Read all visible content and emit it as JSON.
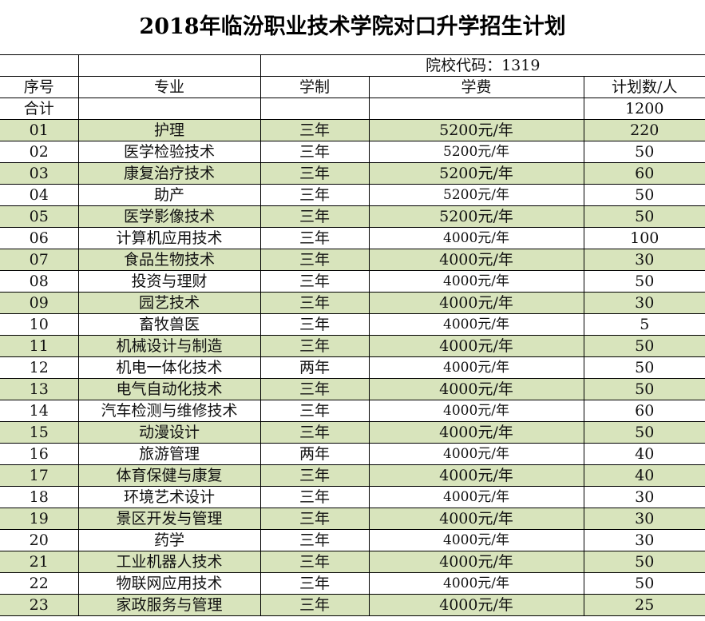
{
  "title": "2018年临汾职业技术学院对口升学招生计划",
  "school_code_label": "院校代码：1319",
  "headers": [
    "序号",
    "专业",
    "学制",
    "学费",
    "计划数/人"
  ],
  "total": {
    "label": "合计",
    "value": "1200"
  },
  "highlight_color": "#d8e4bc",
  "rows": [
    [
      "01",
      "护理",
      "三年",
      "5200元/年",
      "220"
    ],
    [
      "02",
      "医学检验技术",
      "三年",
      "5200元/年",
      "50"
    ],
    [
      "03",
      "康复治疗技术",
      "三年",
      "5200元/年",
      "60"
    ],
    [
      "04",
      "助产",
      "三年",
      "5200元/年",
      "50"
    ],
    [
      "05",
      "医学影像技术",
      "三年",
      "5200元/年",
      "50"
    ],
    [
      "06",
      "计算机应用技术",
      "三年",
      "4000元/年",
      "100"
    ],
    [
      "07",
      "食品生物技术",
      "三年",
      "4000元/年",
      "30"
    ],
    [
      "08",
      "投资与理财",
      "三年",
      "4000元/年",
      "50"
    ],
    [
      "09",
      "园艺技术",
      "三年",
      "4000元/年",
      "30"
    ],
    [
      "10",
      "畜牧兽医",
      "三年",
      "4000元/年",
      "5"
    ],
    [
      "11",
      "机械设计与制造",
      "三年",
      "4000元/年",
      "50"
    ],
    [
      "12",
      "机电一体化技术",
      "两年",
      "4000元/年",
      "50"
    ],
    [
      "13",
      "电气自动化技术",
      "三年",
      "4000元/年",
      "50"
    ],
    [
      "14",
      "汽车检测与维修技术",
      "三年",
      "4000元/年",
      "60"
    ],
    [
      "15",
      "动漫设计",
      "三年",
      "4000元/年",
      "50"
    ],
    [
      "16",
      "旅游管理",
      "两年",
      "4000元/年",
      "40"
    ],
    [
      "17",
      "体育保健与康复",
      "三年",
      "4000元/年",
      "40"
    ],
    [
      "18",
      "环境艺术设计",
      "三年",
      "4000元/年",
      "30"
    ],
    [
      "19",
      "景区开发与管理",
      "三年",
      "4000元/年",
      "30"
    ],
    [
      "20",
      "药学",
      "三年",
      "4000元/年",
      "30"
    ],
    [
      "21",
      "工业机器人技术",
      "三年",
      "4000元/年",
      "50"
    ],
    [
      "22",
      "物联网应用技术",
      "三年",
      "4000元/年",
      "50"
    ],
    [
      "23",
      "家政服务与管理",
      "三年",
      "4000元/年",
      "25"
    ]
  ]
}
